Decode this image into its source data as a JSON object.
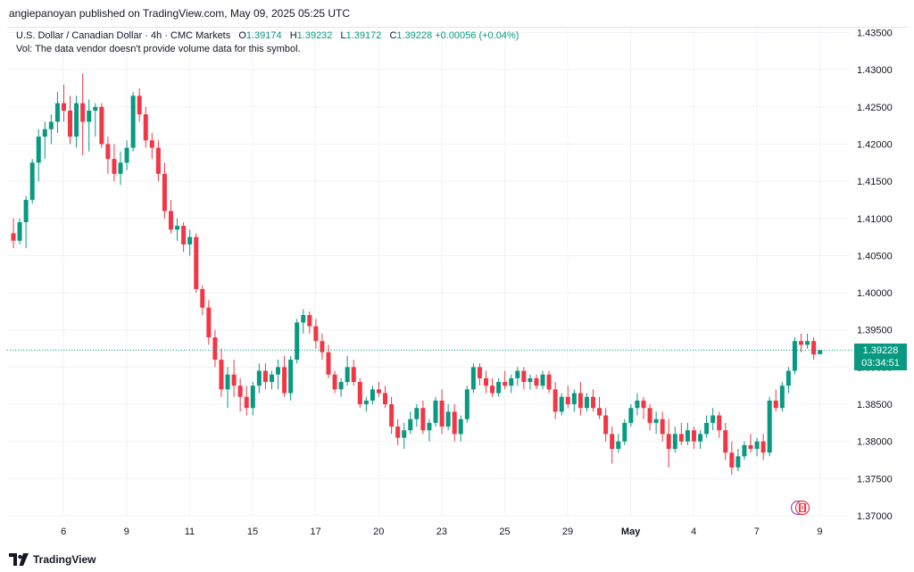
{
  "header": {
    "published_text": "angiepanoyan published on TradingView.com, May 09, 2025 05:25 UTC"
  },
  "legend": {
    "symbol": "U.S. Dollar / Canadian Dollar · 4h · CMC Markets",
    "open_label": "O",
    "open": "1.39174",
    "high_label": "H",
    "high": "1.39232",
    "low_label": "L",
    "low": "1.39172",
    "close_label": "C",
    "close": "1.39228",
    "change": "+0.00056 (+0.04%)",
    "volume_note": "Vol: The data vendor doesn't provide volume data for this symbol."
  },
  "price_tag": {
    "price": "1.39228",
    "countdown": "03:34:51"
  },
  "footer": {
    "brand": "TradingView"
  },
  "colors": {
    "up": "#089981",
    "down": "#f23645",
    "grid": "#f0f3fa",
    "text": "#131722",
    "tag": "#089981"
  },
  "chart_data": {
    "type": "candlestick",
    "ylim": [
      1.37,
      1.435
    ],
    "ytick_labels": [
      "1.37000",
      "1.37500",
      "1.38000",
      "1.38500",
      "1.39000",
      "1.39500",
      "1.40000",
      "1.40500",
      "1.41000",
      "1.41500",
      "1.42000",
      "1.42500",
      "1.43000",
      "1.43500"
    ],
    "ytick_values": [
      1.37,
      1.375,
      1.38,
      1.385,
      1.39,
      1.395,
      1.4,
      1.405,
      1.41,
      1.415,
      1.42,
      1.425,
      1.43,
      1.435
    ],
    "xtick_labels": [
      "6",
      "9",
      "11",
      "15",
      "17",
      "20",
      "23",
      "25",
      "29",
      "May",
      "4",
      "7",
      "9"
    ],
    "xtick_index": [
      4,
      14,
      24,
      34,
      44,
      54,
      64,
      74,
      84,
      94,
      104,
      114,
      124
    ],
    "current_price": 1.39228,
    "candles_ohlc": [
      [
        1.408,
        1.41,
        1.406,
        1.407
      ],
      [
        1.407,
        1.41,
        1.4065,
        1.4095
      ],
      [
        1.4095,
        1.413,
        1.406,
        1.4125
      ],
      [
        1.4125,
        1.418,
        1.412,
        1.4175
      ],
      [
        1.4175,
        1.422,
        1.415,
        1.421
      ],
      [
        1.421,
        1.423,
        1.418,
        1.422
      ],
      [
        1.422,
        1.424,
        1.42,
        1.423
      ],
      [
        1.423,
        1.427,
        1.4215,
        1.4255
      ],
      [
        1.4255,
        1.428,
        1.423,
        1.4245
      ],
      [
        1.4245,
        1.4265,
        1.42,
        1.421
      ],
      [
        1.421,
        1.4265,
        1.4195,
        1.4255
      ],
      [
        1.4255,
        1.4295,
        1.4185,
        1.423
      ],
      [
        1.423,
        1.426,
        1.419,
        1.4245
      ],
      [
        1.4245,
        1.4255,
        1.421,
        1.425
      ],
      [
        1.425,
        1.4255,
        1.4195,
        1.42
      ],
      [
        1.42,
        1.421,
        1.416,
        1.418
      ],
      [
        1.418,
        1.42,
        1.415,
        1.416
      ],
      [
        1.416,
        1.419,
        1.4145,
        1.4175
      ],
      [
        1.4175,
        1.4205,
        1.4165,
        1.4195
      ],
      [
        1.4195,
        1.427,
        1.419,
        1.4265
      ],
      [
        1.4265,
        1.4275,
        1.423,
        1.424
      ],
      [
        1.424,
        1.425,
        1.4195,
        1.4205
      ],
      [
        1.4205,
        1.4215,
        1.418,
        1.4195
      ],
      [
        1.4195,
        1.4205,
        1.415,
        1.416
      ],
      [
        1.416,
        1.4175,
        1.41,
        1.411
      ],
      [
        1.411,
        1.4125,
        1.408,
        1.4085
      ],
      [
        1.4085,
        1.41,
        1.407,
        1.409
      ],
      [
        1.409,
        1.4095,
        1.4055,
        1.4065
      ],
      [
        1.4065,
        1.4085,
        1.405,
        1.4075
      ],
      [
        1.4075,
        1.408,
        1.4,
        1.4005
      ],
      [
        1.4005,
        1.401,
        1.397,
        1.398
      ],
      [
        1.398,
        1.399,
        1.393,
        1.394
      ],
      [
        1.394,
        1.395,
        1.39,
        1.391
      ],
      [
        1.391,
        1.3925,
        1.386,
        1.387
      ],
      [
        1.387,
        1.39,
        1.3845,
        1.389
      ],
      [
        1.389,
        1.391,
        1.386,
        1.3875
      ],
      [
        1.3875,
        1.3885,
        1.384,
        1.386
      ],
      [
        1.386,
        1.3875,
        1.3835,
        1.3845
      ],
      [
        1.3845,
        1.388,
        1.3835,
        1.3875
      ],
      [
        1.3875,
        1.3905,
        1.3865,
        1.3895
      ],
      [
        1.3895,
        1.3905,
        1.387,
        1.388
      ],
      [
        1.388,
        1.3895,
        1.387,
        1.389
      ],
      [
        1.389,
        1.391,
        1.387,
        1.39
      ],
      [
        1.39,
        1.3915,
        1.386,
        1.3865
      ],
      [
        1.3865,
        1.3915,
        1.3855,
        1.391
      ],
      [
        1.391,
        1.3965,
        1.3905,
        1.396
      ],
      [
        1.396,
        1.3978,
        1.3945,
        1.397
      ],
      [
        1.397,
        1.3975,
        1.3945,
        1.3955
      ],
      [
        1.3955,
        1.3965,
        1.3925,
        1.3935
      ],
      [
        1.3935,
        1.3945,
        1.391,
        1.392
      ],
      [
        1.392,
        1.393,
        1.3885,
        1.389
      ],
      [
        1.389,
        1.3895,
        1.3865,
        1.387
      ],
      [
        1.387,
        1.3885,
        1.386,
        1.388
      ],
      [
        1.388,
        1.3915,
        1.3875,
        1.39
      ],
      [
        1.39,
        1.391,
        1.3875,
        1.388
      ],
      [
        1.388,
        1.3885,
        1.3845,
        1.385
      ],
      [
        1.385,
        1.386,
        1.384,
        1.3855
      ],
      [
        1.3855,
        1.3875,
        1.385,
        1.387
      ],
      [
        1.387,
        1.388,
        1.386,
        1.3865
      ],
      [
        1.3865,
        1.3875,
        1.3845,
        1.385
      ],
      [
        1.385,
        1.386,
        1.381,
        1.382
      ],
      [
        1.382,
        1.383,
        1.3795,
        1.3805
      ],
      [
        1.3805,
        1.3825,
        1.379,
        1.3815
      ],
      [
        1.3815,
        1.384,
        1.381,
        1.383
      ],
      [
        1.383,
        1.385,
        1.382,
        1.3845
      ],
      [
        1.3845,
        1.3855,
        1.381,
        1.3815
      ],
      [
        1.3815,
        1.383,
        1.38,
        1.3825
      ],
      [
        1.3825,
        1.386,
        1.382,
        1.3855
      ],
      [
        1.3855,
        1.387,
        1.381,
        1.382
      ],
      [
        1.382,
        1.385,
        1.3815,
        1.384
      ],
      [
        1.384,
        1.385,
        1.38,
        1.381
      ],
      [
        1.381,
        1.3835,
        1.38,
        1.383
      ],
      [
        1.383,
        1.3875,
        1.3825,
        1.387
      ],
      [
        1.387,
        1.3905,
        1.3865,
        1.39
      ],
      [
        1.39,
        1.3905,
        1.3875,
        1.3885
      ],
      [
        1.3885,
        1.3895,
        1.3865,
        1.3875
      ],
      [
        1.3875,
        1.3885,
        1.386,
        1.3865
      ],
      [
        1.3865,
        1.3885,
        1.386,
        1.388
      ],
      [
        1.388,
        1.3895,
        1.387,
        1.3875
      ],
      [
        1.3875,
        1.389,
        1.3865,
        1.3885
      ],
      [
        1.3885,
        1.39,
        1.3875,
        1.3895
      ],
      [
        1.3895,
        1.39,
        1.387,
        1.388
      ],
      [
        1.388,
        1.389,
        1.387,
        1.3885
      ],
      [
        1.3885,
        1.389,
        1.387,
        1.3875
      ],
      [
        1.3875,
        1.3895,
        1.387,
        1.389
      ],
      [
        1.389,
        1.3895,
        1.3865,
        1.387
      ],
      [
        1.387,
        1.388,
        1.383,
        1.384
      ],
      [
        1.384,
        1.3865,
        1.3835,
        1.386
      ],
      [
        1.386,
        1.3875,
        1.3845,
        1.385
      ],
      [
        1.385,
        1.387,
        1.384,
        1.3865
      ],
      [
        1.3865,
        1.388,
        1.3835,
        1.3845
      ],
      [
        1.3845,
        1.3865,
        1.384,
        1.386
      ],
      [
        1.386,
        1.387,
        1.384,
        1.3845
      ],
      [
        1.3845,
        1.386,
        1.383,
        1.3835
      ],
      [
        1.3835,
        1.3845,
        1.38,
        1.381
      ],
      [
        1.381,
        1.382,
        1.377,
        1.379
      ],
      [
        1.379,
        1.381,
        1.3785,
        1.38
      ],
      [
        1.38,
        1.383,
        1.3795,
        1.3825
      ],
      [
        1.3825,
        1.385,
        1.382,
        1.3845
      ],
      [
        1.3845,
        1.3865,
        1.3835,
        1.3855
      ],
      [
        1.3855,
        1.386,
        1.383,
        1.3845
      ],
      [
        1.3845,
        1.385,
        1.3815,
        1.3825
      ],
      [
        1.3825,
        1.384,
        1.381,
        1.383
      ],
      [
        1.383,
        1.384,
        1.38,
        1.381
      ],
      [
        1.381,
        1.383,
        1.3765,
        1.379
      ],
      [
        1.379,
        1.382,
        1.3785,
        1.381
      ],
      [
        1.381,
        1.3825,
        1.3795,
        1.38
      ],
      [
        1.38,
        1.3825,
        1.3795,
        1.3815
      ],
      [
        1.3815,
        1.382,
        1.379,
        1.38
      ],
      [
        1.38,
        1.3815,
        1.379,
        1.381
      ],
      [
        1.381,
        1.3835,
        1.3805,
        1.3825
      ],
      [
        1.3825,
        1.3845,
        1.3815,
        1.3835
      ],
      [
        1.3835,
        1.384,
        1.3805,
        1.3815
      ],
      [
        1.3815,
        1.3825,
        1.3775,
        1.3785
      ],
      [
        1.3785,
        1.38,
        1.3755,
        1.3765
      ],
      [
        1.3765,
        1.379,
        1.376,
        1.378
      ],
      [
        1.378,
        1.38,
        1.3775,
        1.3795
      ],
      [
        1.3795,
        1.381,
        1.3785,
        1.379
      ],
      [
        1.379,
        1.3805,
        1.378,
        1.38
      ],
      [
        1.38,
        1.381,
        1.3775,
        1.3785
      ],
      [
        1.3785,
        1.386,
        1.378,
        1.3855
      ],
      [
        1.3855,
        1.387,
        1.384,
        1.3845
      ],
      [
        1.3845,
        1.388,
        1.384,
        1.3875
      ],
      [
        1.3875,
        1.39,
        1.3865,
        1.3895
      ],
      [
        1.3895,
        1.394,
        1.389,
        1.3935
      ],
      [
        1.3935,
        1.3945,
        1.392,
        1.393
      ],
      [
        1.393,
        1.3945,
        1.3925,
        1.3935
      ],
      [
        1.3935,
        1.394,
        1.391,
        1.3917
      ],
      [
        1.39174,
        1.39232,
        1.39172,
        1.39228
      ]
    ]
  }
}
